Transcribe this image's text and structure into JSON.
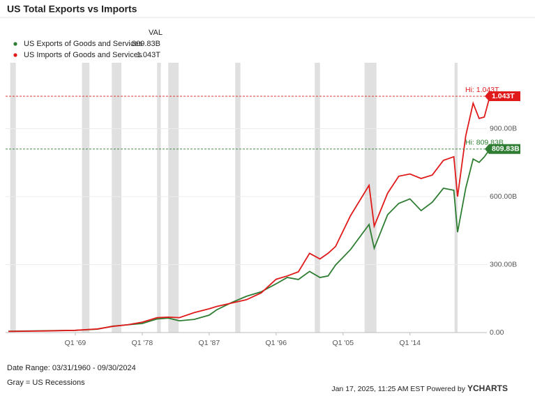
{
  "chart_data": {
    "type": "line",
    "title": "US Total Exports vs Imports",
    "legend_header": "VAL",
    "x": [
      1960,
      1965,
      1969,
      1972,
      1974,
      1976,
      1978,
      1980,
      1981.5,
      1983,
      1985,
      1987,
      1988,
      1990,
      1992,
      1994,
      1996,
      1997.5,
      1999,
      2000.5,
      2001.9,
      2003,
      2004,
      2006,
      2008.5,
      2009.2,
      2011,
      2012.5,
      2014,
      2015.5,
      2017,
      2018.5,
      2019.9,
      2020.4,
      2021.5,
      2022.5,
      2023.3,
      2024,
      2024.75
    ],
    "series": [
      {
        "name": "US Exports of Goods and Services",
        "color": "#2e7d32",
        "values": [
          6,
          8,
          10,
          15,
          28,
          34,
          40,
          60,
          64,
          52,
          58,
          77,
          100,
          132,
          160,
          180,
          215,
          243,
          234,
          270,
          243,
          250,
          298,
          366,
          477,
          372,
          520,
          570,
          590,
          538,
          575,
          637,
          628,
          443,
          637,
          766,
          751,
          775,
          809.83
        ],
        "current": {
          "value": 809.83,
          "label": "809.83B"
        },
        "high": {
          "value": 809.83,
          "label": "Hi: 809.83B"
        }
      },
      {
        "name": "US Imports of Goods and Services",
        "color": "#e01a1a",
        "values": [
          5,
          7,
          10,
          16,
          27,
          34,
          46,
          66,
          68,
          66,
          88,
          105,
          115,
          130,
          145,
          175,
          235,
          250,
          268,
          350,
          325,
          350,
          380,
          515,
          650,
          470,
          615,
          690,
          700,
          680,
          695,
          760,
          776,
          600,
          868,
          1012,
          945,
          951,
          1043
        ],
        "current": {
          "value": 1043,
          "label": "1.043T"
        },
        "high": {
          "value": 1043,
          "label": "Hi: 1.043T"
        }
      }
    ],
    "xlim": [
      1960,
      2025
    ],
    "xticks": [
      {
        "value": 1969,
        "label": "Q1 '69"
      },
      {
        "value": 1978,
        "label": "Q1 '78"
      },
      {
        "value": 1987,
        "label": "Q1 '87"
      },
      {
        "value": 1996,
        "label": "Q1 '96"
      },
      {
        "value": 2005,
        "label": "Q1 '05"
      },
      {
        "value": 2014,
        "label": "Q1 '14"
      }
    ],
    "ylim": [
      0,
      1200
    ],
    "yticks": [
      {
        "value": 0,
        "label": "0.00"
      },
      {
        "value": 300,
        "label": "300.00B"
      },
      {
        "value": 600,
        "label": "600.00B"
      },
      {
        "value": 900,
        "label": "900.00B"
      }
    ],
    "grid": true,
    "recessions": [
      [
        1960.25,
        1961
      ],
      [
        1969.9,
        1970.9
      ],
      [
        1973.9,
        1975.2
      ],
      [
        1980,
        1980.5
      ],
      [
        1981.5,
        1982.9
      ],
      [
        1990.5,
        1991.2
      ],
      [
        2001.2,
        2001.9
      ],
      [
        2007.9,
        2009.5
      ],
      [
        2020,
        2020.4
      ]
    ],
    "notes": {
      "date_range": "Date Range: 03/31/1960 - 09/30/2024",
      "recession_note": "Gray = US Recessions",
      "timestamp": "Jan 17, 2025, 11:25 AM EST Powered by",
      "brand": "YCHARTS"
    }
  }
}
